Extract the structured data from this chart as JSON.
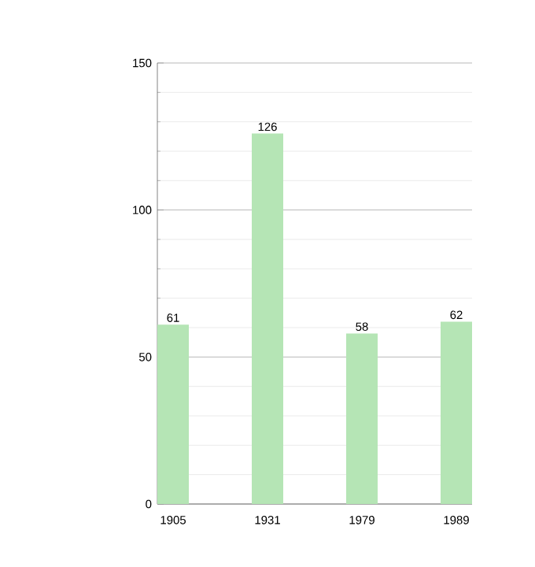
{
  "chart_data": {
    "type": "bar",
    "categories": [
      "1905",
      "1931",
      "1979",
      "1989"
    ],
    "values": [
      61,
      126,
      58,
      62
    ],
    "color": "#b5e5b5",
    "ylim": [
      0,
      150
    ],
    "yticks": [
      0,
      50,
      100,
      150
    ],
    "grid": "y",
    "data_labels": true
  }
}
